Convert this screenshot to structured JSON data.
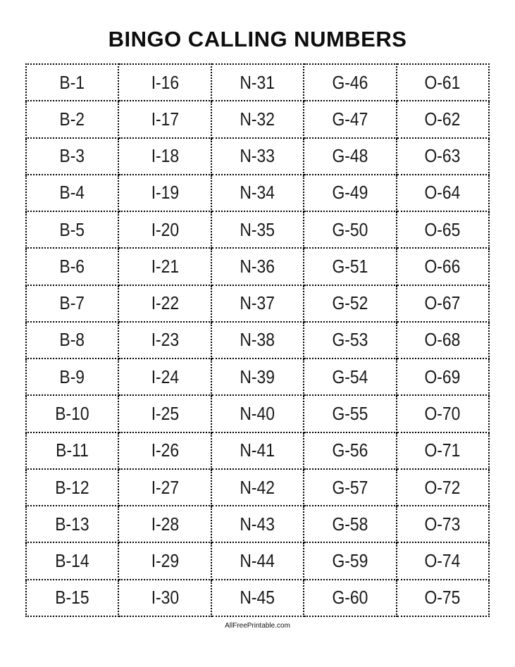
{
  "header": {
    "title": "BINGO CALLING NUMBERS"
  },
  "table": {
    "columns": [
      "B",
      "I",
      "N",
      "G",
      "O"
    ],
    "rows": [
      [
        "B-1",
        "I-16",
        "N-31",
        "G-46",
        "O-61"
      ],
      [
        "B-2",
        "I-17",
        "N-32",
        "G-47",
        "O-62"
      ],
      [
        "B-3",
        "I-18",
        "N-33",
        "G-48",
        "O-63"
      ],
      [
        "B-4",
        "I-19",
        "N-34",
        "G-49",
        "O-64"
      ],
      [
        "B-5",
        "I-20",
        "N-35",
        "G-50",
        "O-65"
      ],
      [
        "B-6",
        "I-21",
        "N-36",
        "G-51",
        "O-66"
      ],
      [
        "B-7",
        "I-22",
        "N-37",
        "G-52",
        "O-67"
      ],
      [
        "B-8",
        "I-23",
        "N-38",
        "G-53",
        "O-68"
      ],
      [
        "B-9",
        "I-24",
        "N-39",
        "G-54",
        "O-69"
      ],
      [
        "B-10",
        "I-25",
        "N-40",
        "G-55",
        "O-70"
      ],
      [
        "B-11",
        "I-26",
        "N-41",
        "G-56",
        "O-71"
      ],
      [
        "B-12",
        "I-27",
        "N-42",
        "G-57",
        "O-72"
      ],
      [
        "B-13",
        "I-28",
        "N-43",
        "G-58",
        "O-73"
      ],
      [
        "B-14",
        "I-29",
        "N-44",
        "G-59",
        "O-74"
      ],
      [
        "B-15",
        "I-30",
        "N-45",
        "G-60",
        "O-75"
      ]
    ]
  },
  "footer": {
    "credit": "AllFreePrintable.com"
  },
  "colors": {
    "text": "#1a1a1a",
    "border": "#000000",
    "background": "#ffffff"
  }
}
